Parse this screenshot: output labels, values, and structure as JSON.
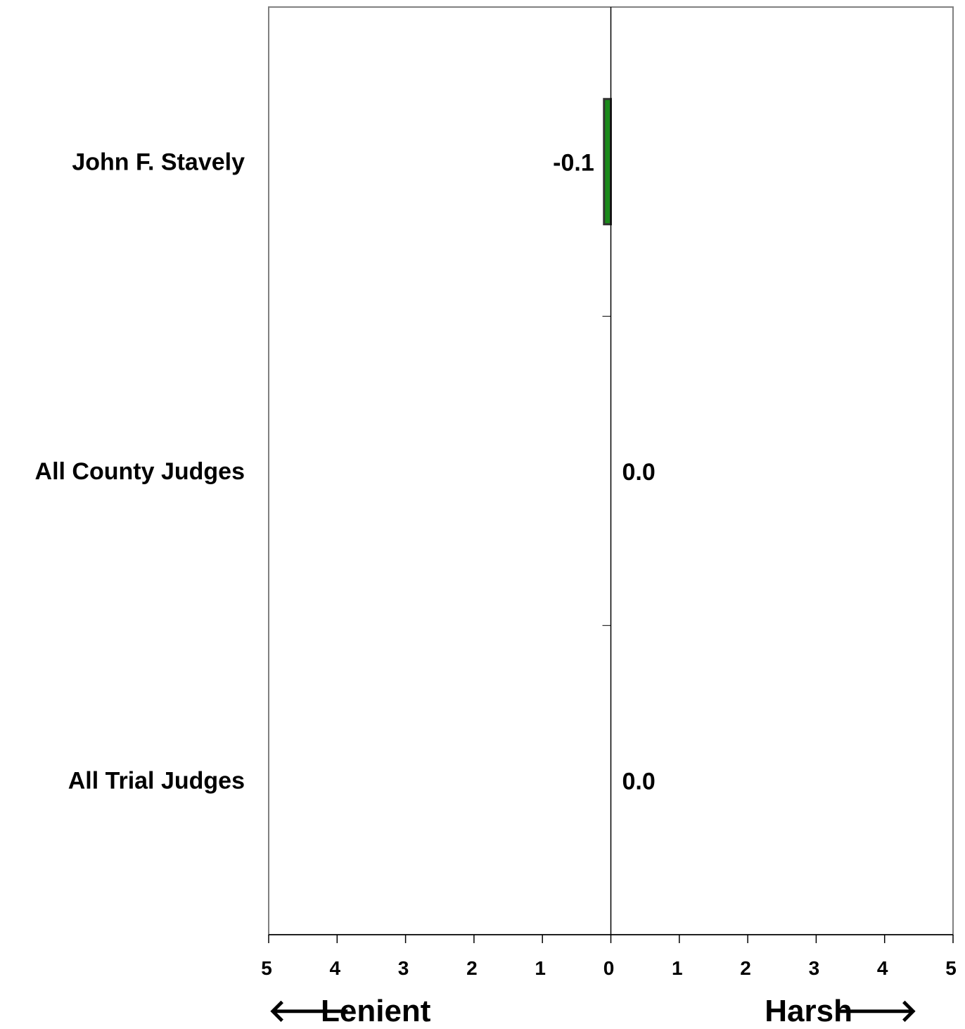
{
  "chart_data": {
    "type": "bar",
    "orientation": "horizontal",
    "categories": [
      "John F. Stavely",
      "All County Judges",
      "All Trial Judges"
    ],
    "values": [
      -0.1,
      0.0,
      0.0
    ],
    "data_labels": [
      "-0.1",
      "0.0",
      "0.0"
    ],
    "xlim": [
      -5,
      5
    ],
    "x_ticks": [
      -5,
      -4,
      -3,
      -2,
      -1,
      0,
      1,
      2,
      3,
      4,
      5
    ],
    "x_tick_labels": [
      "5",
      "4",
      "3",
      "2",
      "1",
      "0",
      "1",
      "2",
      "3",
      "4",
      "5"
    ],
    "direction_labels": {
      "left": "Lenient",
      "right": "Harsh"
    },
    "grid": false,
    "legend": "none",
    "colors": {
      "bar_fill": "#1a8a1a",
      "bar_edge": "#333333",
      "frame": "#808080",
      "axis": "#000000"
    }
  }
}
